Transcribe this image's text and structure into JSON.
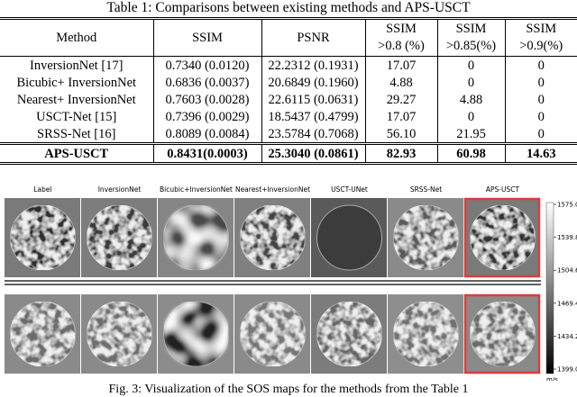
{
  "table": {
    "caption": "Table 1: Comparisons between existing methods and APS-USCT",
    "header": [
      [
        "Method"
      ],
      [
        "SSIM"
      ],
      [
        "PSNR"
      ],
      [
        "SSIM",
        ">0.8 (%)"
      ],
      [
        "SSIM",
        ">0.85(%)"
      ],
      [
        "SSIM",
        ">0.9(%)"
      ]
    ],
    "rows": [
      [
        "InversionNet [17]",
        "0.7340 (0.0120)",
        "22.2312 (0.1931)",
        "17.07",
        "0",
        "0"
      ],
      [
        "Bicubic+ InversionNet",
        "0.6836 (0.0037)",
        "20.6849 (0.1960)",
        "4.88",
        "0",
        "0"
      ],
      [
        "Nearest+ InversionNet",
        "0.7603 (0.0028)",
        "22.6115 (0.0631)",
        "29.27",
        "4.88",
        "0"
      ],
      [
        "USCT-Net [15]",
        "0.7396 (0.0029)",
        "18.5437 (0.4799)",
        "17.07",
        "0",
        "0"
      ],
      [
        "SRSS-Net [16]",
        "0.8089 (0.0084)",
        "23.5784 (0.7068)",
        "56.10",
        "21.95",
        "0"
      ],
      [
        "APS-USCT",
        "0.8431(0.0003)",
        "25.3040 (0.0861)",
        "82.93",
        "60.98",
        "14.63"
      ]
    ]
  },
  "figure": {
    "panel_labels": [
      "Label",
      "InversionNet",
      "Bicubic+InversionNet",
      "Nearest+InversionNet",
      "USCT-UNet",
      "SRSS-Net",
      "APS-USCT"
    ],
    "colorbar": {
      "ticks": [
        "1575.0",
        "1539.8",
        "1504.6",
        "1469.4",
        "1434.2",
        "1399.0"
      ],
      "unit": "m/s"
    },
    "caption": "Fig. 3: Visualization of the SOS maps for the methods from the Table 1"
  }
}
